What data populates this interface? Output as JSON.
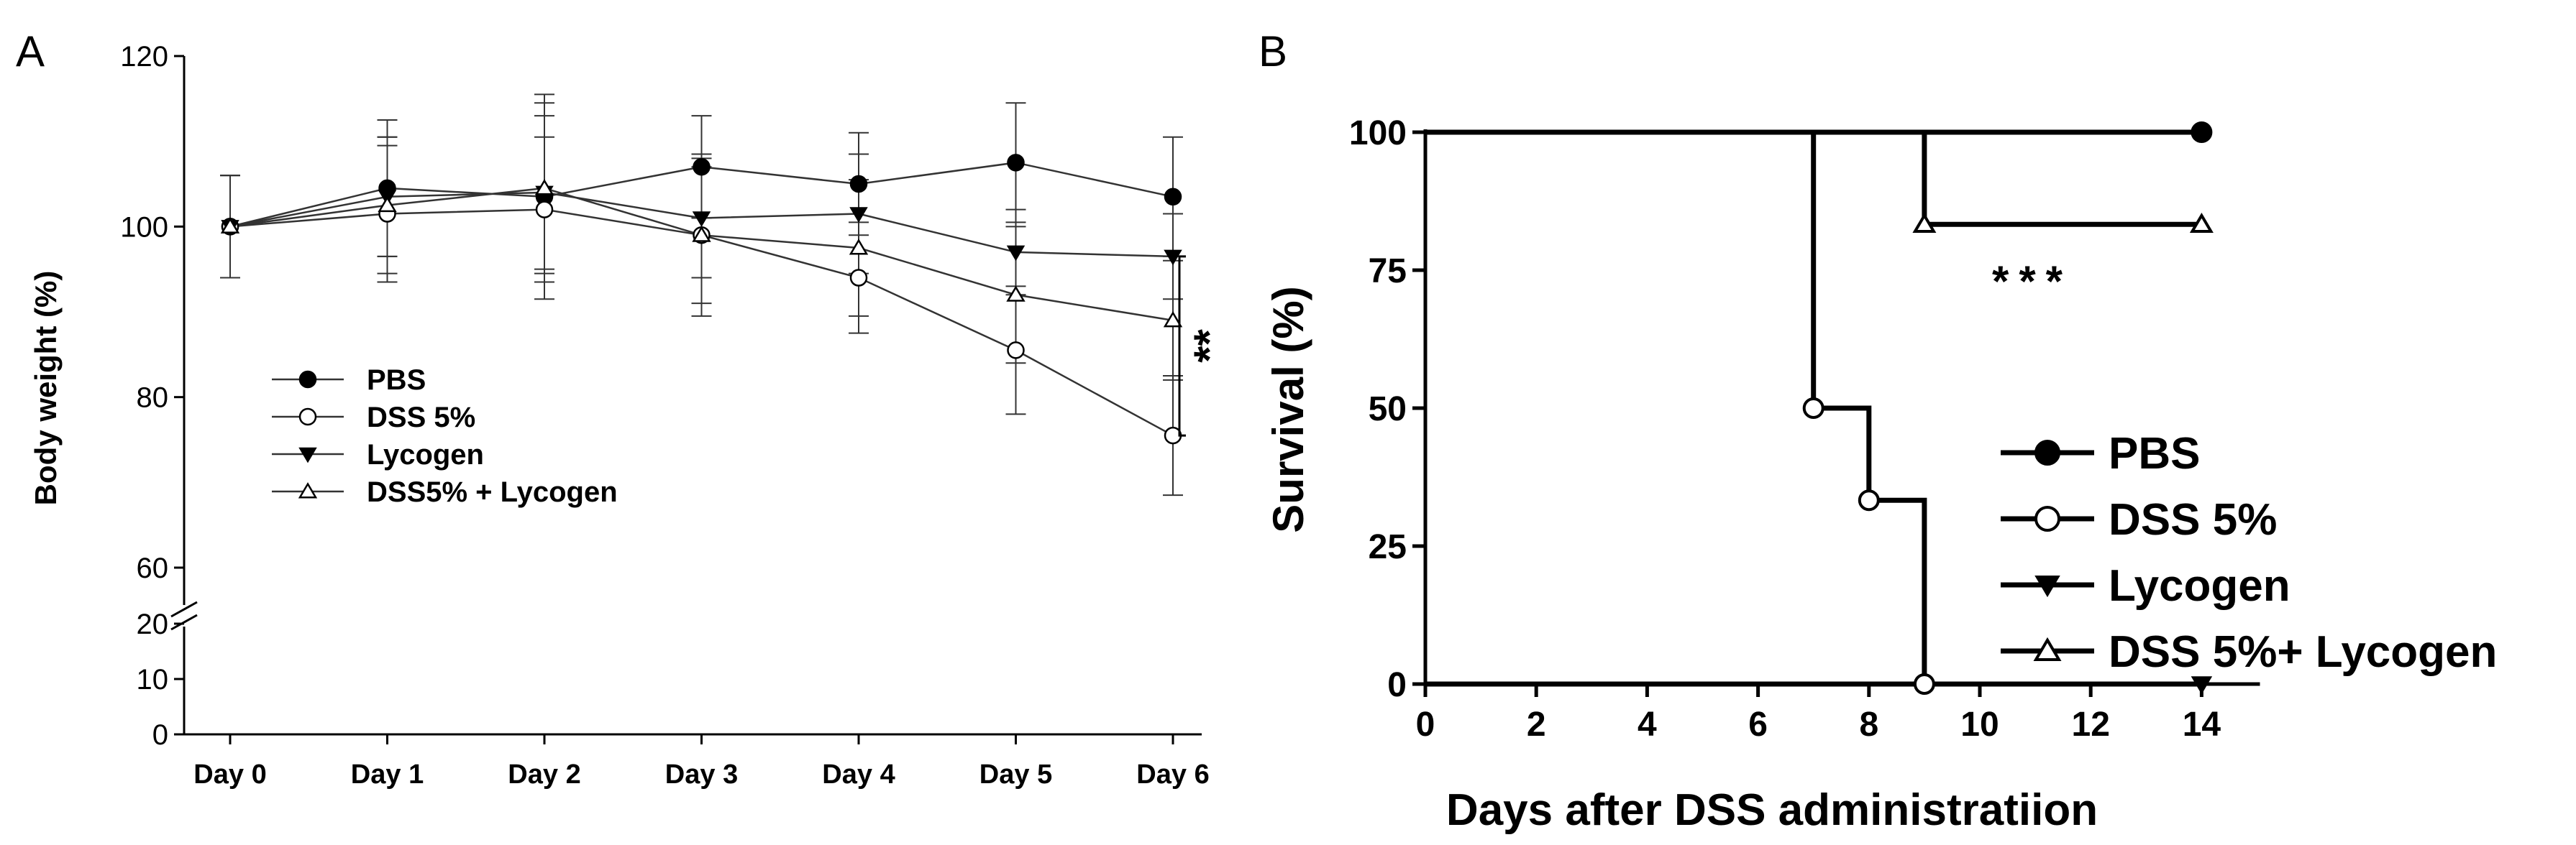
{
  "chart_data": [
    {
      "panel_label": "A",
      "type": "line",
      "categories": [
        "Day 0",
        "Day 1",
        "Day 2",
        "Day 3",
        "Day 4",
        "Day 5",
        "Day 6"
      ],
      "ylabel": "Body weight (%)",
      "yticks_upper": [
        60,
        80,
        100,
        120
      ],
      "yticks_lower": [
        0,
        10,
        20
      ],
      "ylim_upper": [
        60,
        120
      ],
      "ylim_lower": [
        0,
        20
      ],
      "axis_break": true,
      "series": [
        {
          "name": "PBS",
          "marker": "filled-circle",
          "values": [
            100,
            104.5,
            103.5,
            107,
            105,
            107.5,
            103.5
          ],
          "errors": [
            6,
            8,
            12,
            6,
            6,
            7,
            7
          ]
        },
        {
          "name": "DSS 5%",
          "marker": "open-circle",
          "values": [
            100,
            101.5,
            102,
            99,
            94,
            85.5,
            75.5
          ],
          "errors": [
            6,
            8,
            8.5,
            9.5,
            6.5,
            7.5,
            7
          ]
        },
        {
          "name": "Lycogen",
          "marker": "filled-triangle-down",
          "values": [
            100,
            103.5,
            104,
            101,
            101.5,
            97,
            96.5
          ],
          "errors": [
            6,
            7,
            9,
            7,
            7,
            5,
            5
          ]
        },
        {
          "name": "DSS5% + Lycogen",
          "marker": "open-triangle-up",
          "values": [
            100,
            102.5,
            104.5,
            99,
            97.5,
            92,
            89
          ],
          "errors": [
            6,
            8,
            10,
            8,
            8,
            8,
            7
          ]
        }
      ],
      "annotation": "**"
    },
    {
      "panel_label": "B",
      "type": "line",
      "subtype": "survival-step",
      "xlabel": "Days after DSS administratiion",
      "ylabel": "Survival (%)",
      "xlim": [
        0,
        15
      ],
      "ylim": [
        0,
        100
      ],
      "xticks": [
        0,
        2,
        4,
        6,
        8,
        10,
        12,
        14
      ],
      "yticks": [
        0,
        25,
        50,
        75,
        100
      ],
      "series": [
        {
          "name": "PBS",
          "marker": "filled-circle",
          "x": [
            0,
            14
          ],
          "values": [
            100,
            100
          ]
        },
        {
          "name": "DSS 5%",
          "marker": "open-circle",
          "x": [
            0,
            7,
            8,
            9
          ],
          "values": [
            100,
            50,
            33.3,
            0
          ]
        },
        {
          "name": "Lycogen",
          "marker": "filled-triangle-down",
          "x": [
            0,
            14
          ],
          "values": [
            0,
            0
          ]
        },
        {
          "name": "DSS 5%+ Lycogen",
          "marker": "open-triangle-up",
          "x": [
            0,
            9,
            14
          ],
          "values": [
            100,
            83.3,
            83.3
          ]
        }
      ],
      "annotation": "***"
    }
  ]
}
